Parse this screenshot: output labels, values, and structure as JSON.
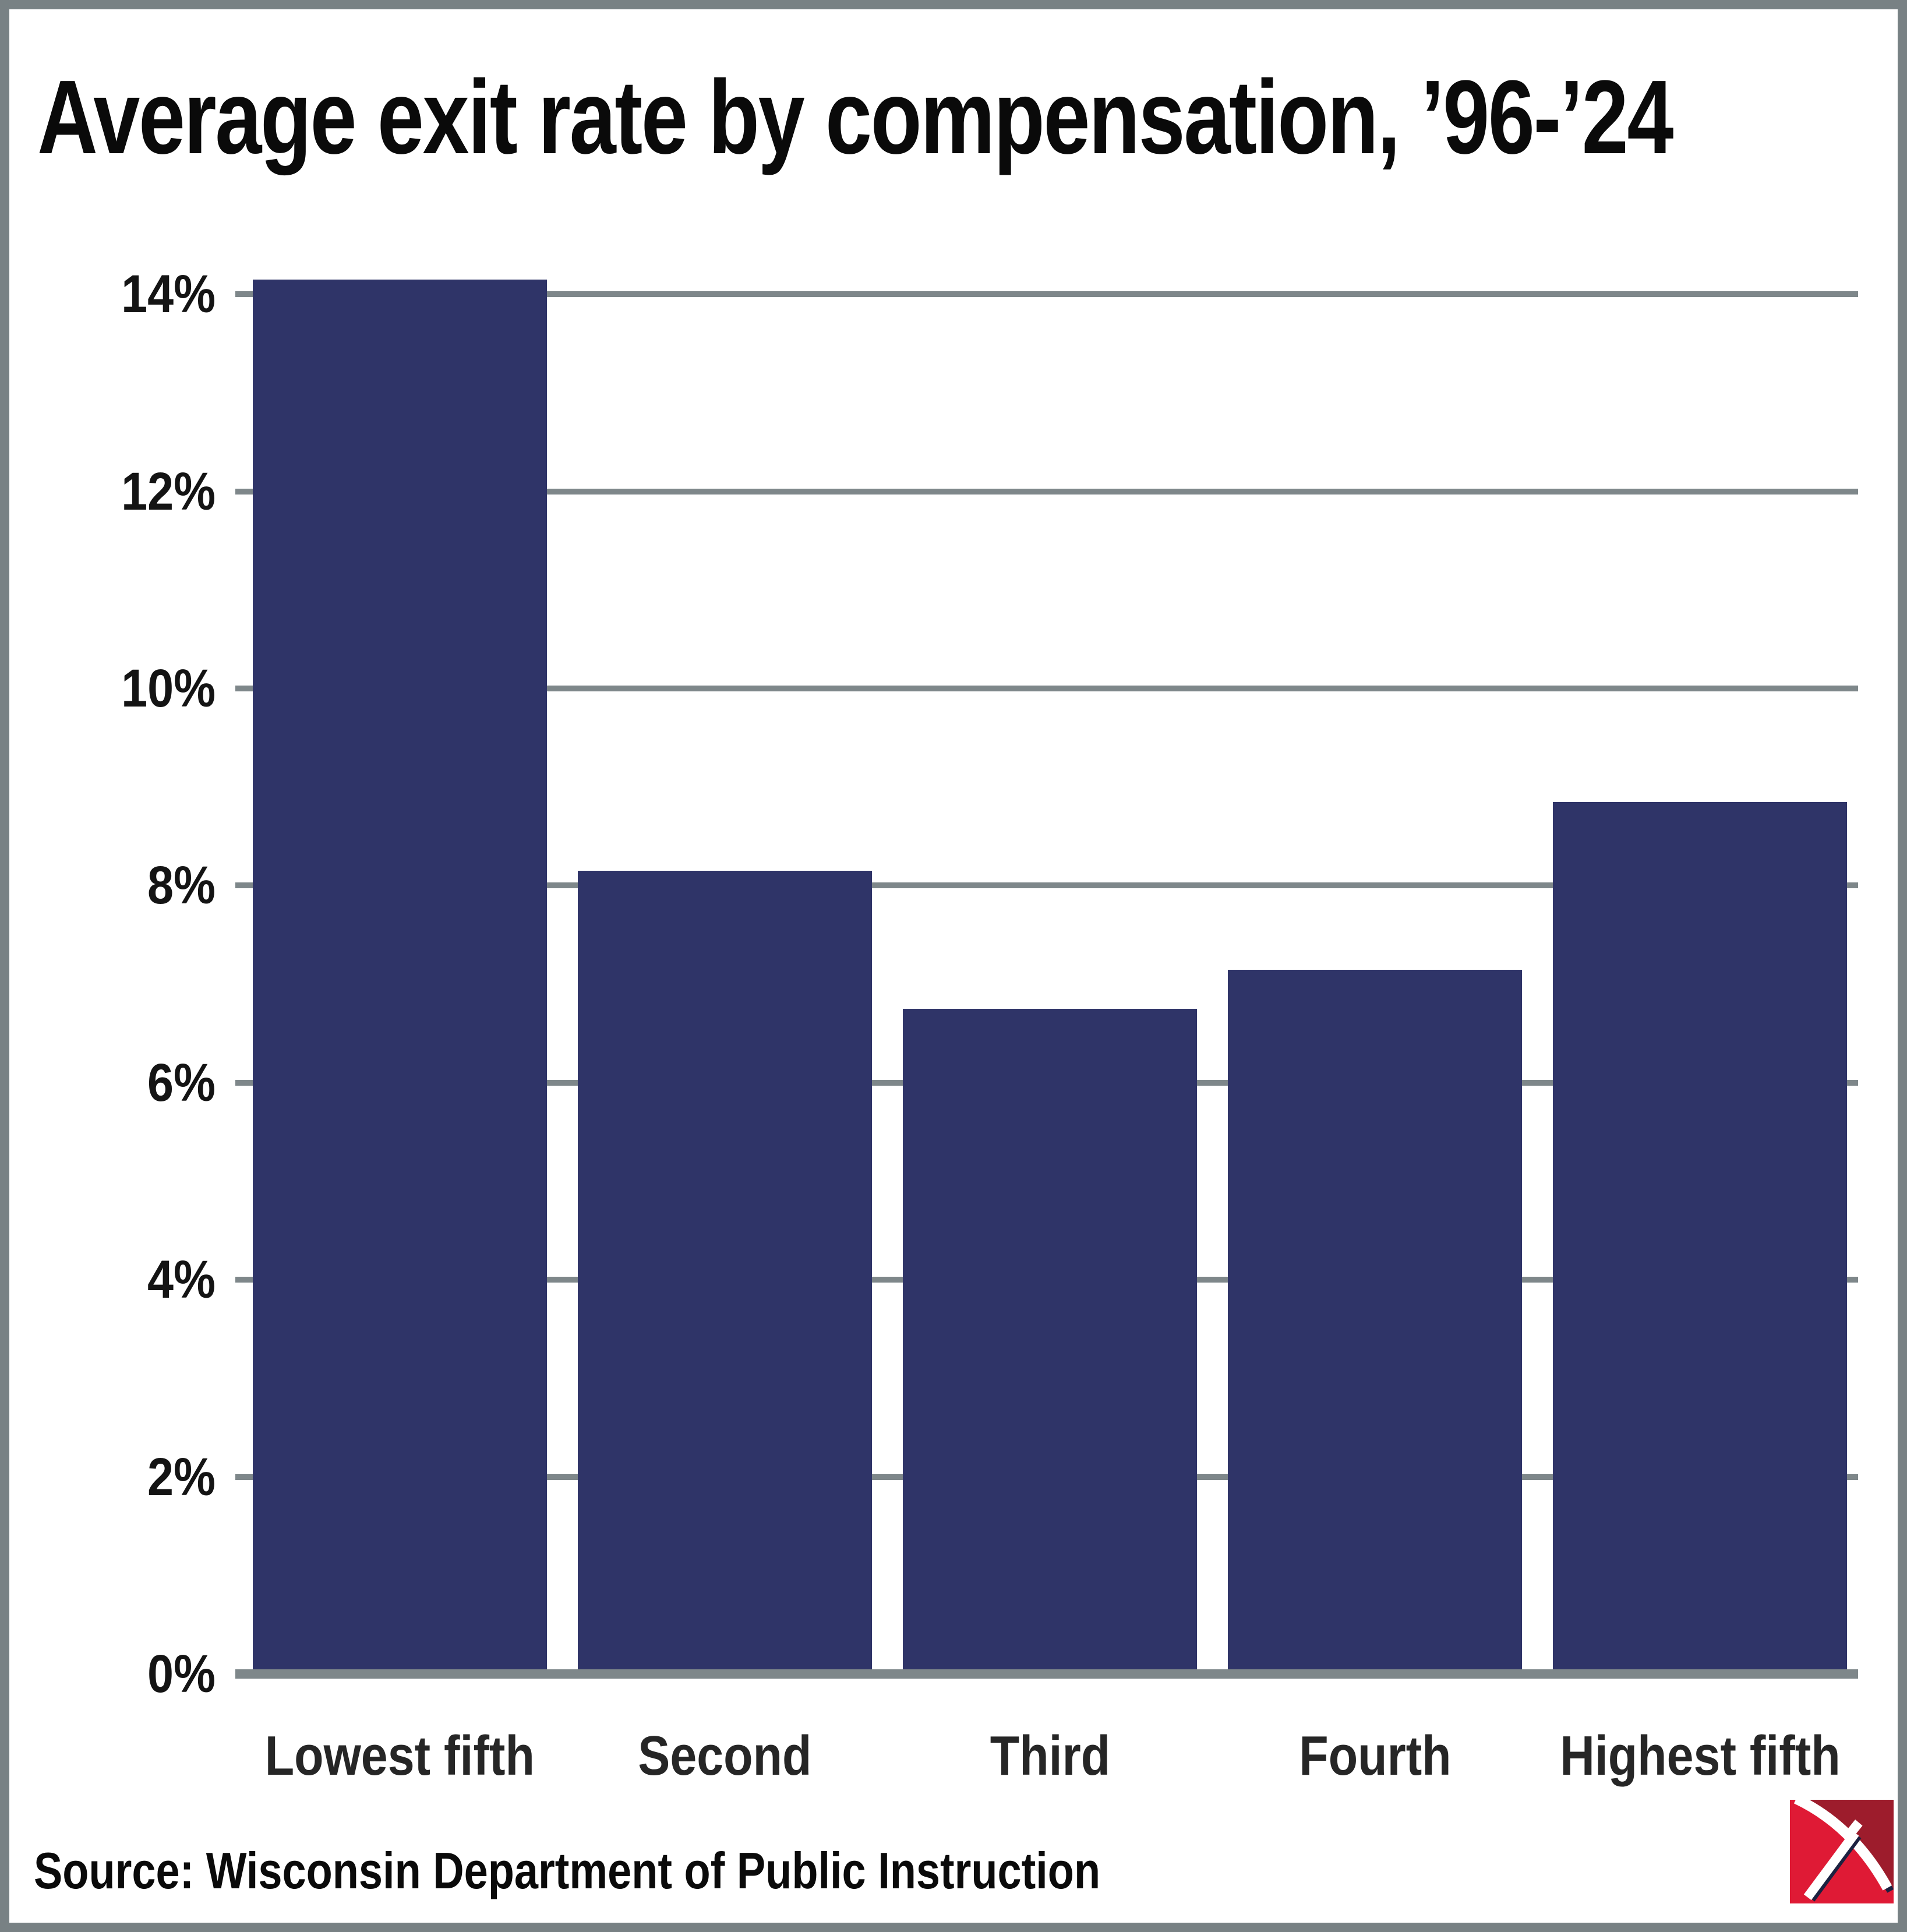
{
  "title": "Average exit rate by compensation, ’96-’24",
  "source_line": "Source: Wisconsin Department of Public Instruction",
  "colors": {
    "bar": "#2f3468",
    "gridline": "#7e878a",
    "frame_border": "#788184",
    "title_text": "#0a0a0a",
    "axis_tick_text": "#141414",
    "category_text": "#262626",
    "logo_red": "#df1a35",
    "logo_dark_red": "#9d1c2c",
    "logo_navy": "#1b2140",
    "background": "#ffffff"
  },
  "logo": {
    "name": "pickaxe-logo"
  },
  "chart_data": {
    "type": "bar",
    "title": "Average exit rate by compensation, ’96-’24",
    "categories": [
      "Lowest fifth",
      "Second",
      "Third",
      "Fourth",
      "Highest fifth"
    ],
    "values": [
      14.1,
      8.1,
      6.7,
      7.1,
      8.8
    ],
    "unit": "%",
    "xlabel": "",
    "ylabel": "",
    "ylim": [
      0,
      14
    ],
    "yticks": [
      0,
      2,
      4,
      6,
      8,
      10,
      12,
      14
    ],
    "ytick_labels": [
      "0%",
      "2%",
      "4%",
      "6%",
      "8%",
      "10%",
      "12%",
      "14%"
    ],
    "grid": true,
    "legend_position": "none"
  }
}
